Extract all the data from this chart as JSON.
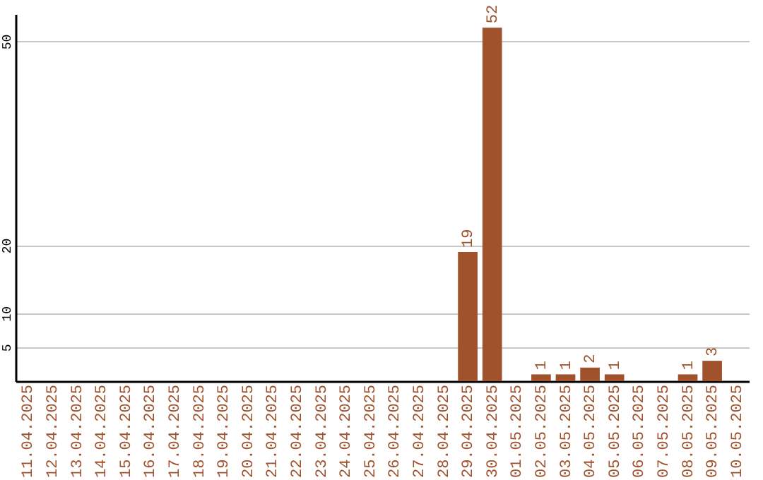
{
  "chart_data": {
    "type": "bar",
    "categories": [
      "11.04.2025",
      "12.04.2025",
      "13.04.2025",
      "14.04.2025",
      "15.04.2025",
      "16.04.2025",
      "17.04.2025",
      "18.04.2025",
      "19.04.2025",
      "20.04.2025",
      "21.04.2025",
      "22.04.2025",
      "23.04.2025",
      "24.04.2025",
      "25.04.2025",
      "26.04.2025",
      "27.04.2025",
      "28.04.2025",
      "29.04.2025",
      "30.04.2025",
      "01.05.2025",
      "02.05.2025",
      "03.05.2025",
      "04.05.2025",
      "05.05.2025",
      "06.05.2025",
      "07.05.2025",
      "08.05.2025",
      "09.05.2025",
      "10.05.2025"
    ],
    "values": [
      0,
      0,
      0,
      0,
      0,
      0,
      0,
      0,
      0,
      0,
      0,
      0,
      0,
      0,
      0,
      0,
      0,
      0,
      19,
      52,
      0,
      1,
      1,
      2,
      1,
      0,
      0,
      1,
      3,
      0
    ],
    "value_labels": [
      null,
      null,
      null,
      null,
      null,
      null,
      null,
      null,
      null,
      null,
      null,
      null,
      null,
      null,
      null,
      null,
      null,
      null,
      "19",
      "52",
      null,
      "1",
      "1",
      "2",
      "1",
      null,
      null,
      "1",
      "3",
      null
    ],
    "color": "#a0522d",
    "ylim": [
      0,
      54
    ],
    "yticks": [
      5,
      10,
      20,
      50
    ],
    "grid": "y"
  }
}
